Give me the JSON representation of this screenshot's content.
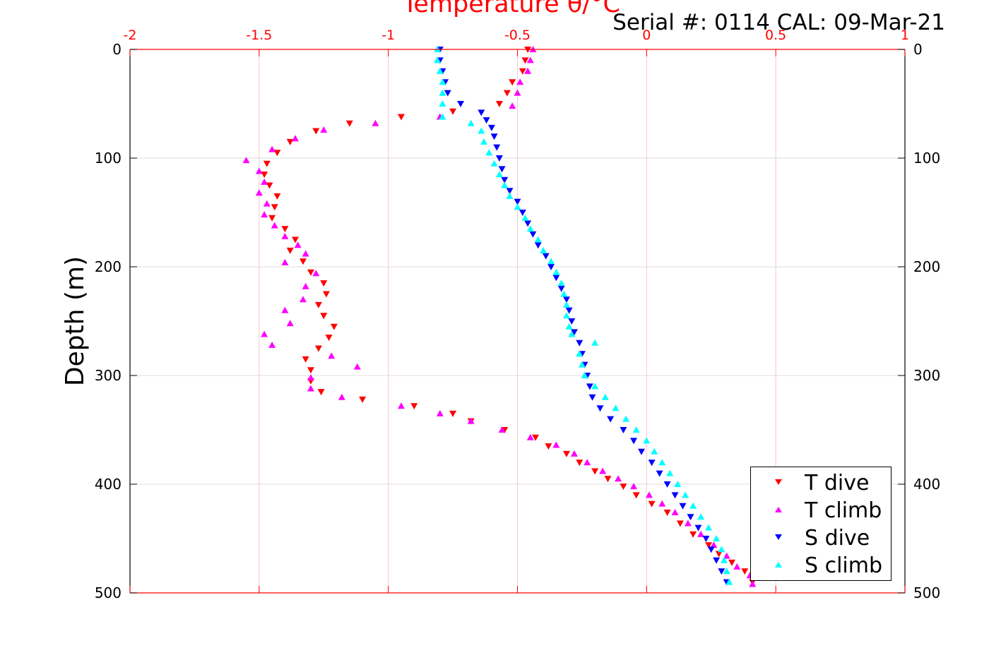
{
  "chart_data": {
    "type": "scatter",
    "title": "Temperature θ/°C",
    "annotation": "Serial #: 0114  CAL: 09-Mar-21",
    "xlabel": "Temperature θ/°C",
    "ylabel": "Depth (m)",
    "xlim": [
      -2,
      1
    ],
    "ylim": [
      500,
      0
    ],
    "y_reversed": true,
    "x_axis_position": "top",
    "xticks": [
      "-2",
      "-1.5",
      "-1",
      "-0.5",
      "0",
      "0.5",
      "1"
    ],
    "yticks": [
      "0",
      "100",
      "200",
      "300",
      "400",
      "500"
    ],
    "grid": true,
    "legend_position": "bottom-right",
    "colors": {
      "t_dive": "#ff0000",
      "t_climb": "#ff00ff",
      "s_dive": "#0000ff",
      "s_climb": "#00ffff",
      "top_axis": "#ff0000",
      "grid": "#dddddd"
    },
    "series": [
      {
        "name": "T dive",
        "marker": "triangle-down",
        "color": "#ff0000",
        "points": [
          [
            -0.46,
            0
          ],
          [
            -0.47,
            10
          ],
          [
            -0.48,
            20
          ],
          [
            -0.52,
            30
          ],
          [
            -0.54,
            40
          ],
          [
            -0.57,
            50
          ],
          [
            -0.75,
            57
          ],
          [
            -0.95,
            62
          ],
          [
            -1.15,
            68
          ],
          [
            -1.28,
            75
          ],
          [
            -1.38,
            85
          ],
          [
            -1.43,
            95
          ],
          [
            -1.47,
            105
          ],
          [
            -1.48,
            115
          ],
          [
            -1.46,
            125
          ],
          [
            -1.43,
            135
          ],
          [
            -1.44,
            145
          ],
          [
            -1.45,
            155
          ],
          [
            -1.4,
            165
          ],
          [
            -1.36,
            175
          ],
          [
            -1.38,
            185
          ],
          [
            -1.33,
            195
          ],
          [
            -1.3,
            205
          ],
          [
            -1.25,
            215
          ],
          [
            -1.24,
            225
          ],
          [
            -1.27,
            235
          ],
          [
            -1.25,
            245
          ],
          [
            -1.21,
            255
          ],
          [
            -1.23,
            265
          ],
          [
            -1.27,
            275
          ],
          [
            -1.32,
            285
          ],
          [
            -1.3,
            295
          ],
          [
            -1.3,
            305
          ],
          [
            -1.26,
            315
          ],
          [
            -1.1,
            322
          ],
          [
            -0.9,
            328
          ],
          [
            -0.75,
            335
          ],
          [
            -0.68,
            342
          ],
          [
            -0.55,
            350
          ],
          [
            -0.43,
            357
          ],
          [
            -0.38,
            365
          ],
          [
            -0.31,
            372
          ],
          [
            -0.26,
            380
          ],
          [
            -0.2,
            388
          ],
          [
            -0.15,
            395
          ],
          [
            -0.09,
            402
          ],
          [
            -0.04,
            410
          ],
          [
            0.02,
            418
          ],
          [
            0.08,
            426
          ],
          [
            0.13,
            436
          ],
          [
            0.18,
            446
          ],
          [
            0.24,
            456
          ],
          [
            0.28,
            464
          ],
          [
            0.33,
            472
          ],
          [
            0.38,
            480
          ],
          [
            0.41,
            490
          ]
        ]
      },
      {
        "name": "T climb",
        "marker": "triangle-up",
        "color": "#ff00ff",
        "points": [
          [
            -0.44,
            0
          ],
          [
            -0.45,
            10
          ],
          [
            -0.46,
            20
          ],
          [
            -0.49,
            30
          ],
          [
            -0.5,
            40
          ],
          [
            -0.52,
            52
          ],
          [
            -0.8,
            62
          ],
          [
            -1.05,
            68
          ],
          [
            -1.25,
            74
          ],
          [
            -1.36,
            82
          ],
          [
            -1.45,
            92
          ],
          [
            -1.55,
            102
          ],
          [
            -1.5,
            112
          ],
          [
            -1.48,
            122
          ],
          [
            -1.5,
            132
          ],
          [
            -1.47,
            142
          ],
          [
            -1.48,
            152
          ],
          [
            -1.44,
            162
          ],
          [
            -1.4,
            172
          ],
          [
            -1.35,
            180
          ],
          [
            -1.32,
            188
          ],
          [
            -1.4,
            196
          ],
          [
            -1.28,
            206
          ],
          [
            -1.32,
            218
          ],
          [
            -1.33,
            230
          ],
          [
            -1.4,
            240
          ],
          [
            -1.38,
            252
          ],
          [
            -1.48,
            262
          ],
          [
            -1.45,
            272
          ],
          [
            -1.22,
            282
          ],
          [
            -1.12,
            292
          ],
          [
            -1.3,
            302
          ],
          [
            -1.3,
            312
          ],
          [
            -1.18,
            320
          ],
          [
            -0.95,
            328
          ],
          [
            -0.8,
            335
          ],
          [
            -0.68,
            342
          ],
          [
            -0.56,
            350
          ],
          [
            -0.45,
            357
          ],
          [
            -0.35,
            364
          ],
          [
            -0.28,
            372
          ],
          [
            -0.23,
            380
          ],
          [
            -0.17,
            388
          ],
          [
            -0.11,
            395
          ],
          [
            -0.05,
            402
          ],
          [
            0.01,
            410
          ],
          [
            0.06,
            418
          ],
          [
            0.11,
            426
          ],
          [
            0.16,
            436
          ],
          [
            0.21,
            446
          ],
          [
            0.26,
            456
          ],
          [
            0.31,
            466
          ],
          [
            0.35,
            476
          ],
          [
            0.4,
            484
          ],
          [
            0.41,
            492
          ]
        ]
      },
      {
        "name": "S dive",
        "marker": "triangle-down",
        "color": "#0000ff",
        "points": [
          [
            -0.8,
            0
          ],
          [
            -0.8,
            10
          ],
          [
            -0.79,
            20
          ],
          [
            -0.78,
            30
          ],
          [
            -0.77,
            40
          ],
          [
            -0.72,
            50
          ],
          [
            -0.64,
            58
          ],
          [
            -0.62,
            65
          ],
          [
            -0.6,
            72
          ],
          [
            -0.59,
            80
          ],
          [
            -0.58,
            90
          ],
          [
            -0.57,
            100
          ],
          [
            -0.56,
            110
          ],
          [
            -0.55,
            120
          ],
          [
            -0.53,
            130
          ],
          [
            -0.5,
            140
          ],
          [
            -0.48,
            150
          ],
          [
            -0.46,
            160
          ],
          [
            -0.44,
            170
          ],
          [
            -0.42,
            180
          ],
          [
            -0.39,
            190
          ],
          [
            -0.37,
            200
          ],
          [
            -0.35,
            210
          ],
          [
            -0.33,
            220
          ],
          [
            -0.31,
            230
          ],
          [
            -0.3,
            240
          ],
          [
            -0.29,
            250
          ],
          [
            -0.28,
            260
          ],
          [
            -0.26,
            270
          ],
          [
            -0.25,
            280
          ],
          [
            -0.24,
            290
          ],
          [
            -0.23,
            300
          ],
          [
            -0.22,
            310
          ],
          [
            -0.21,
            320
          ],
          [
            -0.18,
            330
          ],
          [
            -0.14,
            340
          ],
          [
            -0.09,
            350
          ],
          [
            -0.05,
            360
          ],
          [
            -0.02,
            370
          ],
          [
            0.02,
            380
          ],
          [
            0.05,
            390
          ],
          [
            0.08,
            400
          ],
          [
            0.11,
            410
          ],
          [
            0.14,
            420
          ],
          [
            0.17,
            430
          ],
          [
            0.2,
            440
          ],
          [
            0.23,
            450
          ],
          [
            0.25,
            460
          ],
          [
            0.27,
            470
          ],
          [
            0.29,
            480
          ],
          [
            0.31,
            490
          ]
        ]
      },
      {
        "name": "S climb",
        "marker": "triangle-up",
        "color": "#00ffff",
        "points": [
          [
            -0.81,
            0
          ],
          [
            -0.81,
            10
          ],
          [
            -0.8,
            20
          ],
          [
            -0.79,
            30
          ],
          [
            -0.79,
            40
          ],
          [
            -0.79,
            50
          ],
          [
            -0.79,
            62
          ],
          [
            -0.68,
            68
          ],
          [
            -0.64,
            75
          ],
          [
            -0.63,
            85
          ],
          [
            -0.61,
            95
          ],
          [
            -0.59,
            105
          ],
          [
            -0.57,
            115
          ],
          [
            -0.55,
            125
          ],
          [
            -0.53,
            135
          ],
          [
            -0.5,
            145
          ],
          [
            -0.47,
            155
          ],
          [
            -0.45,
            165
          ],
          [
            -0.42,
            175
          ],
          [
            -0.4,
            185
          ],
          [
            -0.37,
            195
          ],
          [
            -0.35,
            205
          ],
          [
            -0.33,
            215
          ],
          [
            -0.32,
            225
          ],
          [
            -0.31,
            235
          ],
          [
            -0.31,
            245
          ],
          [
            -0.3,
            255
          ],
          [
            -0.29,
            262
          ],
          [
            -0.2,
            270
          ],
          [
            -0.26,
            280
          ],
          [
            -0.25,
            290
          ],
          [
            -0.24,
            300
          ],
          [
            -0.2,
            310
          ],
          [
            -0.16,
            320
          ],
          [
            -0.12,
            330
          ],
          [
            -0.08,
            340
          ],
          [
            -0.04,
            350
          ],
          [
            0.0,
            360
          ],
          [
            0.03,
            370
          ],
          [
            0.06,
            380
          ],
          [
            0.09,
            390
          ],
          [
            0.12,
            400
          ],
          [
            0.15,
            410
          ],
          [
            0.18,
            420
          ],
          [
            0.21,
            430
          ],
          [
            0.24,
            440
          ],
          [
            0.27,
            450
          ],
          [
            0.29,
            460
          ],
          [
            0.3,
            470
          ],
          [
            0.31,
            480
          ],
          [
            0.32,
            490
          ]
        ]
      }
    ]
  }
}
